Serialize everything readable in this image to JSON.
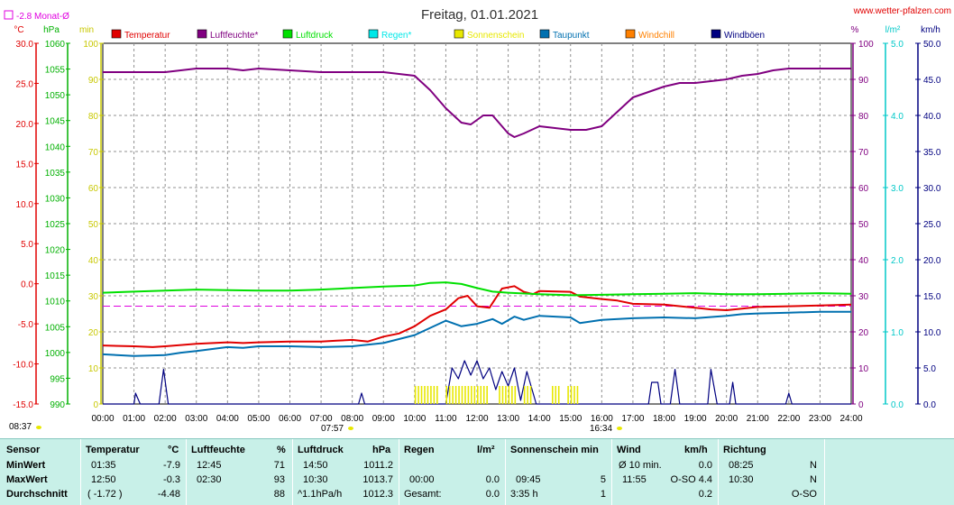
{
  "header": {
    "title": "Freitag, 01.01.2021",
    "website": "www.wetter-pfalzen.com",
    "month_avg_marker": "-2.8 Monat-Ø"
  },
  "axis_units": {
    "temp": "°C",
    "pressure": "hPa",
    "sunshine": "min",
    "humidity": "%",
    "rain": "l/m²",
    "wind": "km/h"
  },
  "axis_ticks": {
    "temp": [
      "30.0",
      "25.0",
      "20.0",
      "15.0",
      "10.0",
      "5.0",
      "0.0",
      "-5.0",
      "-10.0",
      "-15.0"
    ],
    "pressure": [
      "1060",
      "1055",
      "1050",
      "1045",
      "1040",
      "1035",
      "1030",
      "1025",
      "1020",
      "1015",
      "1010",
      "1005",
      "1000",
      "995",
      "990"
    ],
    "sunshine": [
      "100",
      "90",
      "80",
      "70",
      "60",
      "50",
      "40",
      "30",
      "20",
      "10",
      "0"
    ],
    "humidity": [
      "100",
      "90",
      "80",
      "70",
      "60",
      "50",
      "40",
      "30",
      "20",
      "10",
      "0"
    ],
    "rain": [
      "5.0",
      "4.0",
      "3.0",
      "2.0",
      "1.0",
      "0.0"
    ],
    "wind": [
      "50.0",
      "45.0",
      "40.0",
      "35.0",
      "30.0",
      "25.0",
      "20.0",
      "15.0",
      "10.0",
      "5.0",
      "0.0"
    ]
  },
  "x_ticks": [
    "00:00",
    "01:00",
    "02:00",
    "03:00",
    "04:00",
    "05:00",
    "06:00",
    "07:00",
    "08:00",
    "09:00",
    "10:00",
    "11:00",
    "12:00",
    "13:00",
    "14:00",
    "15:00",
    "16:00",
    "17:00",
    "18:00",
    "19:00",
    "20:00",
    "21:00",
    "22:00",
    "23:00",
    "24:00"
  ],
  "sun_times": {
    "moon": "08:37",
    "sunrise": "07:57",
    "sunset": "16:34"
  },
  "legend": [
    {
      "label": "Temperatur",
      "color": "#e00000"
    },
    {
      "label": "Luftfeuchte*",
      "color": "#800080"
    },
    {
      "label": "Luftdruck",
      "color": "#00e000"
    },
    {
      "label": "Regen*",
      "color": "#00e8e8"
    },
    {
      "label": "Sonnenschein",
      "color": "#e8e800"
    },
    {
      "label": "Taupunkt",
      "color": "#0070b0"
    },
    {
      "label": "Windchill",
      "color": "#ff8000"
    },
    {
      "label": "Windböen",
      "color": "#000080"
    }
  ],
  "chart_data": {
    "type": "line",
    "title": "Freitag, 01.01.2021",
    "x_unit": "hour",
    "xlim": [
      0,
      24
    ],
    "grid": true,
    "temp_month_avg": -2.8,
    "series": [
      {
        "name": "Temperatur",
        "unit": "°C",
        "ylim": [
          -15,
          30
        ],
        "points": [
          [
            0,
            -7.7
          ],
          [
            1,
            -7.8
          ],
          [
            1.6,
            -7.9
          ],
          [
            2,
            -7.8
          ],
          [
            3,
            -7.5
          ],
          [
            4,
            -7.3
          ],
          [
            4.5,
            -7.4
          ],
          [
            5,
            -7.3
          ],
          [
            6,
            -7.2
          ],
          [
            7,
            -7.2
          ],
          [
            7.5,
            -7.1
          ],
          [
            8,
            -7.0
          ],
          [
            8.5,
            -7.2
          ],
          [
            9,
            -6.6
          ],
          [
            9.5,
            -6.2
          ],
          [
            10,
            -5.3
          ],
          [
            10.5,
            -4.0
          ],
          [
            11,
            -3.2
          ],
          [
            11.4,
            -1.8
          ],
          [
            11.7,
            -1.5
          ],
          [
            12,
            -2.8
          ],
          [
            12.4,
            -3.0
          ],
          [
            12.8,
            -0.6
          ],
          [
            13.2,
            -0.3
          ],
          [
            13.5,
            -1.0
          ],
          [
            13.8,
            -1.3
          ],
          [
            14,
            -0.9
          ],
          [
            15,
            -1.0
          ],
          [
            15.3,
            -1.6
          ],
          [
            16,
            -1.9
          ],
          [
            16.5,
            -2.1
          ],
          [
            17,
            -2.5
          ],
          [
            18,
            -2.6
          ],
          [
            19,
            -3.0
          ],
          [
            19.5,
            -3.2
          ],
          [
            20,
            -3.3
          ],
          [
            20.5,
            -3.1
          ],
          [
            21,
            -2.9
          ],
          [
            22,
            -2.8
          ],
          [
            23,
            -2.7
          ],
          [
            24,
            -2.6
          ]
        ]
      },
      {
        "name": "Luftfeuchte*",
        "unit": "%",
        "ylim": [
          0,
          100
        ],
        "points": [
          [
            0,
            92
          ],
          [
            1,
            92
          ],
          [
            2,
            92
          ],
          [
            2.5,
            92.5
          ],
          [
            3,
            93
          ],
          [
            4,
            93
          ],
          [
            4.5,
            92.5
          ],
          [
            5,
            93
          ],
          [
            6,
            92.5
          ],
          [
            7,
            92
          ],
          [
            8,
            92
          ],
          [
            9,
            92
          ],
          [
            10,
            91
          ],
          [
            10.5,
            87
          ],
          [
            11,
            82
          ],
          [
            11.5,
            78
          ],
          [
            11.8,
            77.5
          ],
          [
            12.2,
            80
          ],
          [
            12.5,
            80
          ],
          [
            12.8,
            77
          ],
          [
            13,
            75
          ],
          [
            13.2,
            74
          ],
          [
            13.5,
            75
          ],
          [
            14,
            77
          ],
          [
            14.5,
            76.5
          ],
          [
            15,
            76
          ],
          [
            15.5,
            76
          ],
          [
            16,
            77
          ],
          [
            16.5,
            81
          ],
          [
            17,
            85
          ],
          [
            17.5,
            86.5
          ],
          [
            18,
            88
          ],
          [
            18.5,
            89
          ],
          [
            19,
            89
          ],
          [
            20,
            90
          ],
          [
            20.5,
            91
          ],
          [
            21,
            91.5
          ],
          [
            21.5,
            92.5
          ],
          [
            22,
            93
          ],
          [
            23,
            93
          ],
          [
            24,
            93
          ]
        ]
      },
      {
        "name": "Luftdruck",
        "unit": "hPa",
        "ylim": [
          990,
          1060
        ],
        "points": [
          [
            0,
            1011.6
          ],
          [
            1,
            1011.8
          ],
          [
            2,
            1012.0
          ],
          [
            3,
            1012.2
          ],
          [
            4,
            1012.1
          ],
          [
            5,
            1012.0
          ],
          [
            6,
            1012.0
          ],
          [
            7,
            1012.2
          ],
          [
            8,
            1012.5
          ],
          [
            9,
            1012.8
          ],
          [
            10,
            1013.0
          ],
          [
            10.5,
            1013.5
          ],
          [
            11,
            1013.6
          ],
          [
            11.5,
            1013.3
          ],
          [
            12,
            1012.5
          ],
          [
            12.5,
            1011.8
          ],
          [
            13,
            1011.6
          ],
          [
            14,
            1011.3
          ],
          [
            15,
            1011.1
          ],
          [
            16,
            1011.2
          ],
          [
            17,
            1011.3
          ],
          [
            18,
            1011.4
          ],
          [
            19,
            1011.5
          ],
          [
            20,
            1011.3
          ],
          [
            21,
            1011.3
          ],
          [
            22,
            1011.4
          ],
          [
            23,
            1011.5
          ],
          [
            24,
            1011.4
          ]
        ]
      },
      {
        "name": "Taupunkt",
        "unit": "°C",
        "ylim": [
          -15,
          30
        ],
        "points": [
          [
            0,
            -8.8
          ],
          [
            1,
            -9.0
          ],
          [
            2,
            -8.9
          ],
          [
            2.5,
            -8.6
          ],
          [
            3,
            -8.4
          ],
          [
            4,
            -7.9
          ],
          [
            4.5,
            -8.0
          ],
          [
            5,
            -7.8
          ],
          [
            6,
            -7.8
          ],
          [
            7,
            -7.9
          ],
          [
            8,
            -7.8
          ],
          [
            9,
            -7.4
          ],
          [
            10,
            -6.4
          ],
          [
            10.5,
            -5.5
          ],
          [
            11,
            -4.6
          ],
          [
            11.5,
            -5.3
          ],
          [
            12,
            -5.0
          ],
          [
            12.5,
            -4.4
          ],
          [
            12.8,
            -5.0
          ],
          [
            13.2,
            -4.1
          ],
          [
            13.5,
            -4.5
          ],
          [
            14,
            -4.0
          ],
          [
            15,
            -4.2
          ],
          [
            15.3,
            -4.9
          ],
          [
            16,
            -4.5
          ],
          [
            17,
            -4.3
          ],
          [
            18,
            -4.2
          ],
          [
            19,
            -4.3
          ],
          [
            20,
            -4.0
          ],
          [
            20.5,
            -3.8
          ],
          [
            21,
            -3.7
          ],
          [
            22,
            -3.6
          ],
          [
            23,
            -3.5
          ],
          [
            24,
            -3.5
          ]
        ]
      },
      {
        "name": "Windböen",
        "unit": "km/h",
        "ylim": [
          0,
          50
        ],
        "points": [
          [
            0,
            0
          ],
          [
            1,
            0
          ],
          [
            1.05,
            1.5
          ],
          [
            1.2,
            0
          ],
          [
            1.8,
            0
          ],
          [
            1.95,
            4.8
          ],
          [
            2.1,
            0
          ],
          [
            8.2,
            0
          ],
          [
            8.3,
            1.5
          ],
          [
            8.4,
            0
          ],
          [
            11,
            0
          ],
          [
            11.2,
            5.0
          ],
          [
            11.4,
            3.5
          ],
          [
            11.6,
            6.0
          ],
          [
            11.8,
            4.0
          ],
          [
            12,
            6.0
          ],
          [
            12.2,
            3.5
          ],
          [
            12.4,
            5.0
          ],
          [
            12.6,
            2.0
          ],
          [
            12.8,
            4.5
          ],
          [
            13,
            2.5
          ],
          [
            13.2,
            5.0
          ],
          [
            13.4,
            0.5
          ],
          [
            13.6,
            4.5
          ],
          [
            13.9,
            0
          ],
          [
            17.5,
            0
          ],
          [
            17.6,
            3.0
          ],
          [
            17.8,
            3.0
          ],
          [
            17.9,
            0
          ],
          [
            18.2,
            0
          ],
          [
            18.35,
            4.8
          ],
          [
            18.5,
            0
          ],
          [
            19.4,
            0
          ],
          [
            19.5,
            4.8
          ],
          [
            19.7,
            0
          ],
          [
            20.1,
            0
          ],
          [
            20.2,
            3.0
          ],
          [
            20.3,
            0
          ],
          [
            21.9,
            0
          ],
          [
            22.0,
            1.5
          ],
          [
            22.1,
            0
          ],
          [
            24,
            0
          ]
        ]
      },
      {
        "name": "Sonnenschein",
        "unit": "min",
        "ylim": [
          0,
          100
        ],
        "segments": [
          [
            10.0,
            10.8
          ],
          [
            11.0,
            12.4
          ],
          [
            12.7,
            13.3
          ],
          [
            13.5,
            13.8
          ],
          [
            14.4,
            14.7
          ],
          [
            14.9,
            15.3
          ]
        ],
        "value": 5
      }
    ]
  },
  "table": {
    "headers": {
      "sensor": "Sensor",
      "temp": "Temperatur",
      "temp_unit": "°C",
      "hum": "Luftfeuchte",
      "hum_unit": "%",
      "press": "Luftdruck",
      "press_unit": "hPa",
      "rain": "Regen",
      "rain_unit": "l/m²",
      "sun": "Sonnenschein min",
      "wind": "Wind",
      "wind_unit": "km/h",
      "dir": "Richtung"
    },
    "rows": [
      {
        "label": "MinWert",
        "temp_time": "01:35",
        "temp_val": "-7.9",
        "hum_time": "12:45",
        "hum_val": "71",
        "press_time": "14:50",
        "press_val": "1011.2",
        "rain_time": "",
        "rain_val": "",
        "sun_time": "",
        "sun_val": "",
        "wind_time": "Ø 10 min.",
        "wind_val": "0.0",
        "dir_time": "08:25",
        "dir_val": "N"
      },
      {
        "label": "MaxWert",
        "temp_time": "12:50",
        "temp_val": "-0.3",
        "hum_time": "02:30",
        "hum_val": "93",
        "press_time": "10:30",
        "press_val": "1013.7",
        "rain_time": "00:00",
        "rain_val": "0.0",
        "sun_time": "09:45",
        "sun_val": "5",
        "wind_time": "11:55",
        "wind_val": "O-SO  4.4",
        "dir_time": "10:30",
        "dir_val": "N"
      },
      {
        "label": "Durchschnitt",
        "temp_time": "( -1.72 )",
        "temp_val": "-4.48",
        "hum_time": "",
        "hum_val": "88",
        "press_time": "^1.1hPa/h",
        "press_val": "1012.3",
        "rain_time": "Gesamt:",
        "rain_val": "0.0",
        "sun_time": "3:35 h",
        "sun_val": "1",
        "wind_time": "",
        "wind_val": "0.2",
        "dir_time": "",
        "dir_val": "O-SO"
      }
    ]
  }
}
